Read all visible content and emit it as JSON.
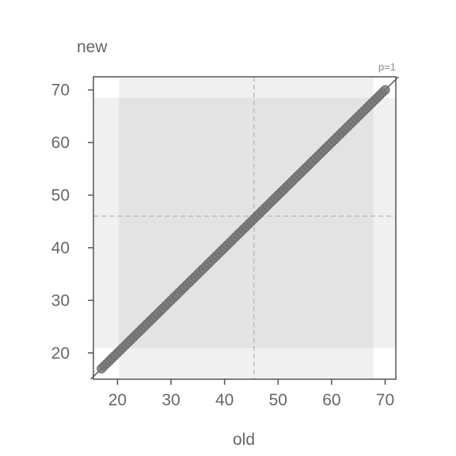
{
  "chart_data": {
    "type": "scatter",
    "xlabel": "old",
    "ylabel": "new",
    "annotation": "p=1",
    "xlim": [
      15.5,
      72
    ],
    "ylim": [
      15,
      72.5
    ],
    "xticks": [
      20,
      30,
      40,
      50,
      60,
      70
    ],
    "yticks": [
      20,
      30,
      40,
      50,
      60,
      70
    ],
    "x_ref_line": 45.5,
    "y_ref_line": 46,
    "x_band_outer": [
      20.3,
      67.8
    ],
    "y_band_outer": [
      14.9,
      72.4
    ],
    "x_band_inner": [
      15.5,
      72
    ],
    "y_band_inner": [
      20.9,
      68.5
    ],
    "diagonal": [
      [
        15,
        15
      ],
      [
        72.5,
        72.5
      ]
    ],
    "points_range": [
      17,
      70
    ],
    "point_step": 0.5,
    "colors": {
      "points": "#7a7a7a",
      "points_edge": "#6a6a6a",
      "band_light": "#f0f0f0",
      "band_dark": "#e3e3e3",
      "ref_line": "#bdbdbd",
      "axis": "#555555",
      "text": "#666666"
    }
  }
}
